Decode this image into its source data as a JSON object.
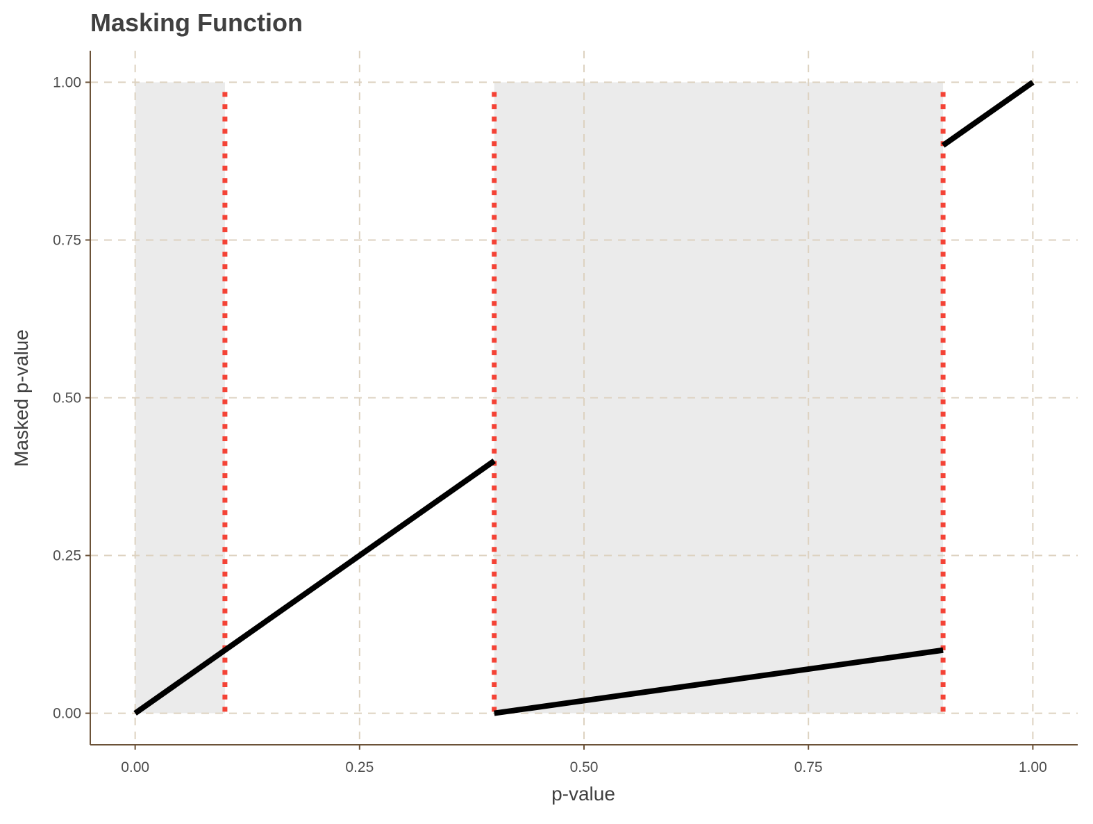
{
  "chart_data": {
    "type": "line",
    "title": "Masking Function",
    "xlabel": "p-value",
    "ylabel": "Masked p-value",
    "xlim": [
      -0.05,
      1.05
    ],
    "ylim": [
      -0.05,
      1.05
    ],
    "x_ticks": [
      0,
      0.25,
      0.5,
      0.75,
      1
    ],
    "x_tick_labels": [
      "0.00",
      "0.25",
      "0.50",
      "0.75",
      "1.00"
    ],
    "y_ticks": [
      0,
      0.25,
      0.5,
      0.75,
      1
    ],
    "y_tick_labels": [
      "0.00",
      "0.25",
      "0.50",
      "0.75",
      "1.00"
    ],
    "grid": true,
    "shaded_regions": [
      {
        "x_start": 0,
        "x_end": 0.1,
        "y_start": 0,
        "y_end": 1
      },
      {
        "x_start": 0.4,
        "x_end": 0.9,
        "y_start": 0,
        "y_end": 1
      }
    ],
    "vertical_lines": [
      0.1,
      0.4,
      0.9
    ],
    "series": [
      {
        "x": [
          0,
          0.4
        ],
        "y": [
          0,
          0.4
        ]
      },
      {
        "x": [
          0.4,
          0.9
        ],
        "y": [
          0,
          0.1
        ]
      },
      {
        "x": [
          0.9,
          1.0
        ],
        "y": [
          0.9,
          1.0
        ]
      }
    ],
    "colors": {
      "line": "#000000",
      "vline": "#f44336",
      "shade": "#ebebeb",
      "grid": "#ddd2c0",
      "axis": "#6b5238"
    }
  }
}
